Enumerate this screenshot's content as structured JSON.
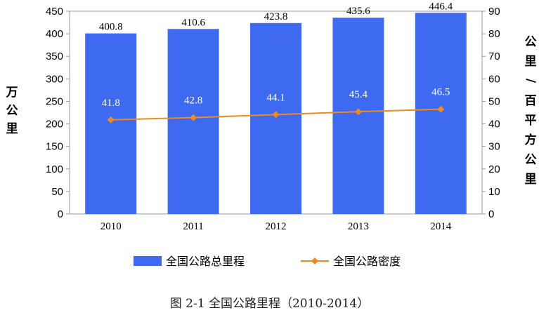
{
  "chart_data": {
    "type": "bar",
    "categories": [
      "2010",
      "2011",
      "2012",
      "2013",
      "2014"
    ],
    "series": [
      {
        "name": "全国公路总里程",
        "type": "bar",
        "axis": "left",
        "color": "#3d6af0",
        "values": [
          400.8,
          410.6,
          423.8,
          435.6,
          446.4
        ]
      },
      {
        "name": "全国公路密度",
        "type": "line",
        "axis": "right",
        "color": "#f08a1e",
        "values": [
          41.8,
          42.8,
          44.1,
          45.4,
          46.5
        ]
      }
    ],
    "ylabel": "万公里",
    "y2label": "公里/百平方公里",
    "ylim": [
      0,
      450
    ],
    "y_ticks": [
      0,
      50,
      100,
      150,
      200,
      250,
      300,
      350,
      400,
      450
    ],
    "y2lim": [
      0,
      90
    ],
    "y2_ticks": [
      0,
      10,
      20,
      30,
      40,
      50,
      60,
      70,
      80,
      90
    ],
    "grid": false,
    "legend_position": "bottom"
  },
  "caption": "图 2-1  全国公路里程（2010-2014）"
}
